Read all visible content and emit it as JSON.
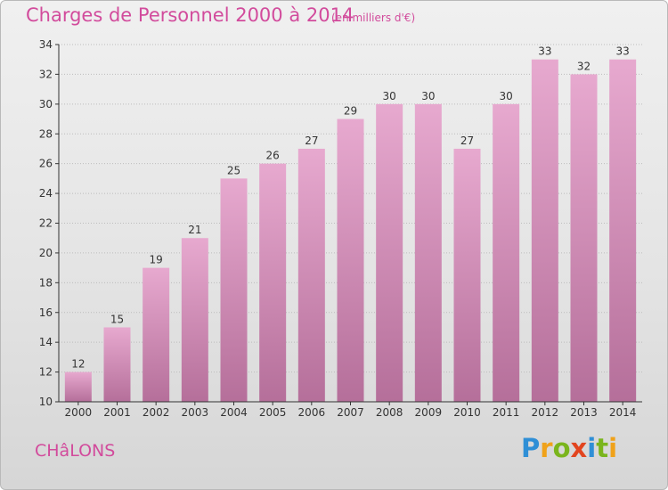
{
  "header": {
    "title": "Charges de Personnel 2000 à 2014",
    "subtitle": "(en milliers d'€)"
  },
  "footer": {
    "commune": "CHâLONS",
    "brand": "Proxiti"
  },
  "brand_letters": [
    {
      "char": "P",
      "color": "#2f8fd6"
    },
    {
      "char": "r",
      "color": "#f0a21a"
    },
    {
      "char": "o",
      "color": "#7ab51d"
    },
    {
      "char": "x",
      "color": "#e2451f"
    },
    {
      "char": "i",
      "color": "#2f8fd6"
    },
    {
      "char": "t",
      "color": "#7ab51d"
    },
    {
      "char": "i",
      "color": "#f0a21a"
    }
  ],
  "colors": {
    "bar_top": "#e7a9cf",
    "bar_bottom": "#b56f9a",
    "axis": "#333333",
    "grid": "#bcbcbc",
    "text": "#333333"
  },
  "chart_data": {
    "type": "bar",
    "categories": [
      "2000",
      "2001",
      "2002",
      "2003",
      "2004",
      "2005",
      "2006",
      "2007",
      "2008",
      "2009",
      "2010",
      "2011",
      "2012",
      "2013",
      "2014"
    ],
    "values": [
      12,
      15,
      19,
      21,
      25,
      26,
      27,
      29,
      30,
      30,
      27,
      30,
      33,
      32,
      33
    ],
    "ylim": [
      10,
      34
    ],
    "yticks": [
      10,
      12,
      14,
      16,
      18,
      20,
      22,
      24,
      26,
      28,
      30,
      32,
      34
    ],
    "data_labels": true,
    "grid": "horizontal"
  }
}
